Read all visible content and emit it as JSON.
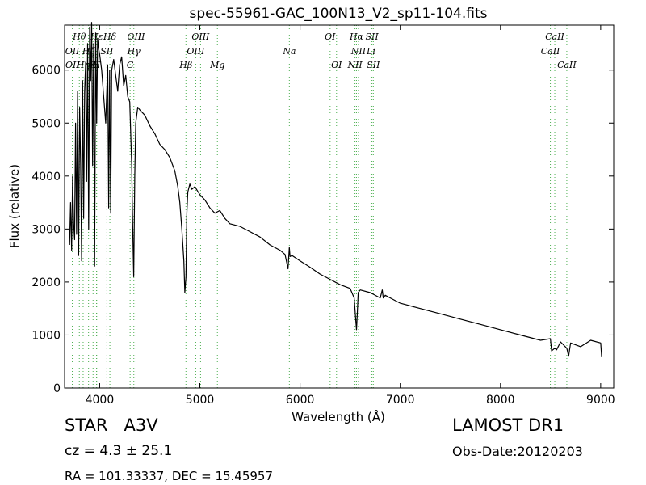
{
  "chart_data": {
    "type": "line",
    "title": "spec-55961-GAC_100N13_V2_sp11-104.fits",
    "xlabel": "Wavelength (Å)",
    "ylabel": "Flux (relative)",
    "xlim": [
      3650,
      9130
    ],
    "ylim": [
      0,
      6850
    ],
    "x_ticks": [
      4000,
      5000,
      6000,
      7000,
      8000,
      9000
    ],
    "y_ticks": [
      0,
      1000,
      2000,
      3000,
      4000,
      5000,
      6000
    ],
    "grid": false,
    "line_color": "#000000",
    "marker_color": "#4caf50",
    "series": [
      {
        "x": [
          3700,
          3710,
          3720,
          3730,
          3740,
          3750,
          3760,
          3770,
          3780,
          3790,
          3800,
          3810,
          3820,
          3830,
          3840,
          3850,
          3860,
          3870,
          3880,
          3890,
          3900,
          3910,
          3920,
          3930,
          3940,
          3950,
          3960,
          3970,
          3980,
          3990,
          4000,
          4020,
          4040,
          4060,
          4080,
          4090,
          4100,
          4110,
          4120,
          4140,
          4160,
          4180,
          4200,
          4220,
          4240,
          4260,
          4280,
          4300,
          4320,
          4330,
          4340,
          4350,
          4360,
          4380,
          4400,
          4450,
          4500,
          4550,
          4600,
          4650,
          4700,
          4750,
          4780,
          4800,
          4820,
          4840,
          4850,
          4861,
          4870,
          4880,
          4900,
          4920,
          4950,
          5000,
          5050,
          5100,
          5150,
          5200,
          5250,
          5300,
          5400,
          5500,
          5600,
          5700,
          5800,
          5850,
          5880,
          5893,
          5900,
          5920,
          6000,
          6100,
          6200,
          6300,
          6400,
          6500,
          6540,
          6555,
          6563,
          6570,
          6580,
          6600,
          6700,
          6800,
          6820,
          6830,
          6850,
          6900,
          7000,
          7200,
          7400,
          7600,
          7800,
          8000,
          8200,
          8400,
          8498,
          8510,
          8542,
          8560,
          8600,
          8662,
          8680,
          8700,
          8800,
          8900,
          9000,
          9010
        ],
        "y": [
          2700,
          3500,
          2600,
          4000,
          3100,
          2800,
          5000,
          2900,
          5600,
          2500,
          5300,
          4200,
          2400,
          5800,
          3200,
          5600,
          6150,
          3900,
          6500,
          3000,
          6800,
          5800,
          6900,
          4200,
          6500,
          2300,
          6700,
          5000,
          6600,
          6400,
          6300,
          6000,
          5500,
          5000,
          6100,
          3400,
          6000,
          3300,
          6000,
          6200,
          5900,
          5600,
          6100,
          6250,
          5700,
          5900,
          5500,
          5400,
          4200,
          3000,
          2100,
          4000,
          5000,
          5300,
          5250,
          5150,
          4950,
          4800,
          4600,
          4500,
          4350,
          4100,
          3800,
          3500,
          3000,
          2400,
          1800,
          2100,
          3300,
          3700,
          3850,
          3750,
          3800,
          3650,
          3550,
          3400,
          3300,
          3350,
          3200,
          3100,
          3050,
          2950,
          2850,
          2700,
          2600,
          2520,
          2250,
          2650,
          2480,
          2500,
          2400,
          2280,
          2150,
          2050,
          1950,
          1880,
          1700,
          1300,
          1100,
          1350,
          1800,
          1850,
          1800,
          1700,
          1850,
          1700,
          1750,
          1700,
          1600,
          1500,
          1400,
          1300,
          1200,
          1100,
          1000,
          900,
          930,
          700,
          750,
          720,
          870,
          750,
          600,
          850,
          780,
          900,
          850,
          580
        ]
      }
    ],
    "line_markers": [
      {
        "label": "Hθ",
        "x": 3797,
        "row": 1
      },
      {
        "label": "OII",
        "x": 3727,
        "row": 2
      },
      {
        "label": "OII",
        "x": 3729,
        "row": 3
      },
      {
        "label": "Hη",
        "x": 3835,
        "row": 3
      },
      {
        "label": "Hζ",
        "x": 3889,
        "row": 2
      },
      {
        "label": "Hε",
        "x": 3970,
        "row": 1
      },
      {
        "label": "K",
        "x": 3934,
        "row": 3
      },
      {
        "label": "H",
        "x": 3969,
        "row": 3
      },
      {
        "label": "SII",
        "x": 4072,
        "row": 2
      },
      {
        "label": "Hδ",
        "x": 4102,
        "row": 1
      },
      {
        "label": "OIII",
        "x": 4363,
        "row": 1
      },
      {
        "label": "Hγ",
        "x": 4341,
        "row": 2
      },
      {
        "label": "G",
        "x": 4304,
        "row": 3
      },
      {
        "label": "OIII",
        "x": 5007,
        "row": 1
      },
      {
        "label": "OIII",
        "x": 4959,
        "row": 2
      },
      {
        "label": "Hβ",
        "x": 4861,
        "row": 3
      },
      {
        "label": "Mg",
        "x": 5175,
        "row": 3
      },
      {
        "label": "Na",
        "x": 5893,
        "row": 2
      },
      {
        "label": "OI",
        "x": 6300,
        "row": 1
      },
      {
        "label": "OI",
        "x": 6364,
        "row": 3
      },
      {
        "label": "Hα",
        "x": 6563,
        "row": 1
      },
      {
        "label": "SII",
        "x": 6717,
        "row": 1
      },
      {
        "label": "NII",
        "x": 6583,
        "row": 2
      },
      {
        "label": "Li",
        "x": 6708,
        "row": 2
      },
      {
        "label": "NII",
        "x": 6548,
        "row": 3
      },
      {
        "label": "SII",
        "x": 6731,
        "row": 3
      },
      {
        "label": "CaII",
        "x": 8542,
        "row": 1
      },
      {
        "label": "CaII",
        "x": 8498,
        "row": 2
      },
      {
        "label": "CaII",
        "x": 8662,
        "row": 3
      }
    ]
  },
  "info": {
    "star_class": "STAR   A3V",
    "cz": "cz = 4.3 ± 25.1",
    "radec": "RA = 101.33337, DEC = 15.45957",
    "survey": "LAMOST DR1",
    "obs_date": "Obs-Date:20120203"
  }
}
